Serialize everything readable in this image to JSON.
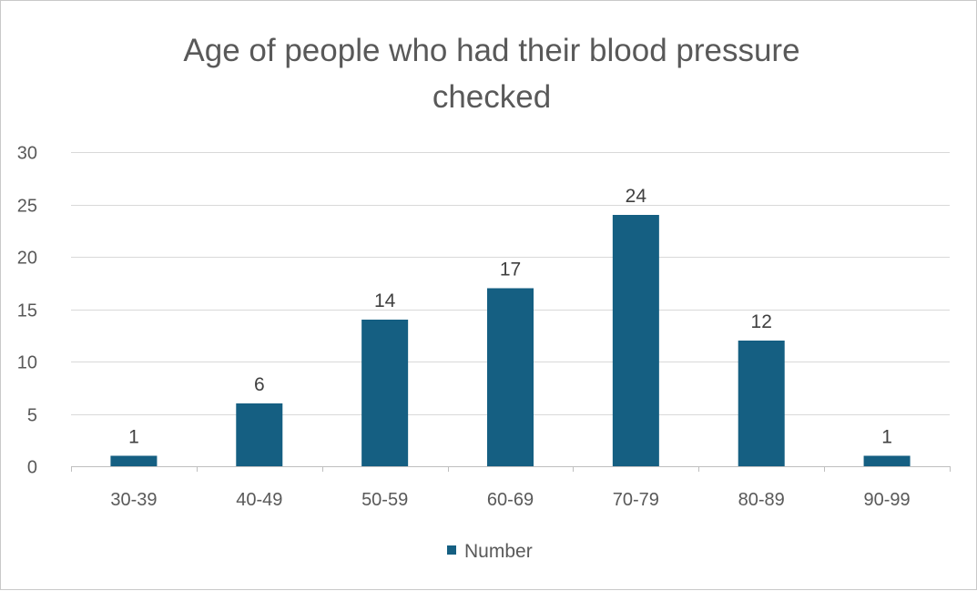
{
  "chart_data": {
    "type": "bar",
    "title": "Age of people who had their blood pressure checked",
    "title_lines": [
      "Age of people who had their blood pressure",
      "checked"
    ],
    "xlabel": "",
    "ylabel": "",
    "categories": [
      "30-39",
      "40-49",
      "50-59",
      "60-69",
      "70-79",
      "80-89",
      "90-99"
    ],
    "series": [
      {
        "name": "Number",
        "values": [
          1,
          6,
          14,
          17,
          24,
          12,
          1
        ],
        "color": "#155F82"
      }
    ],
    "ylim": [
      0,
      30
    ],
    "yticks": [
      0,
      5,
      10,
      15,
      20,
      25,
      30
    ],
    "data_labels": true,
    "grid": true,
    "legend": "bottom"
  }
}
